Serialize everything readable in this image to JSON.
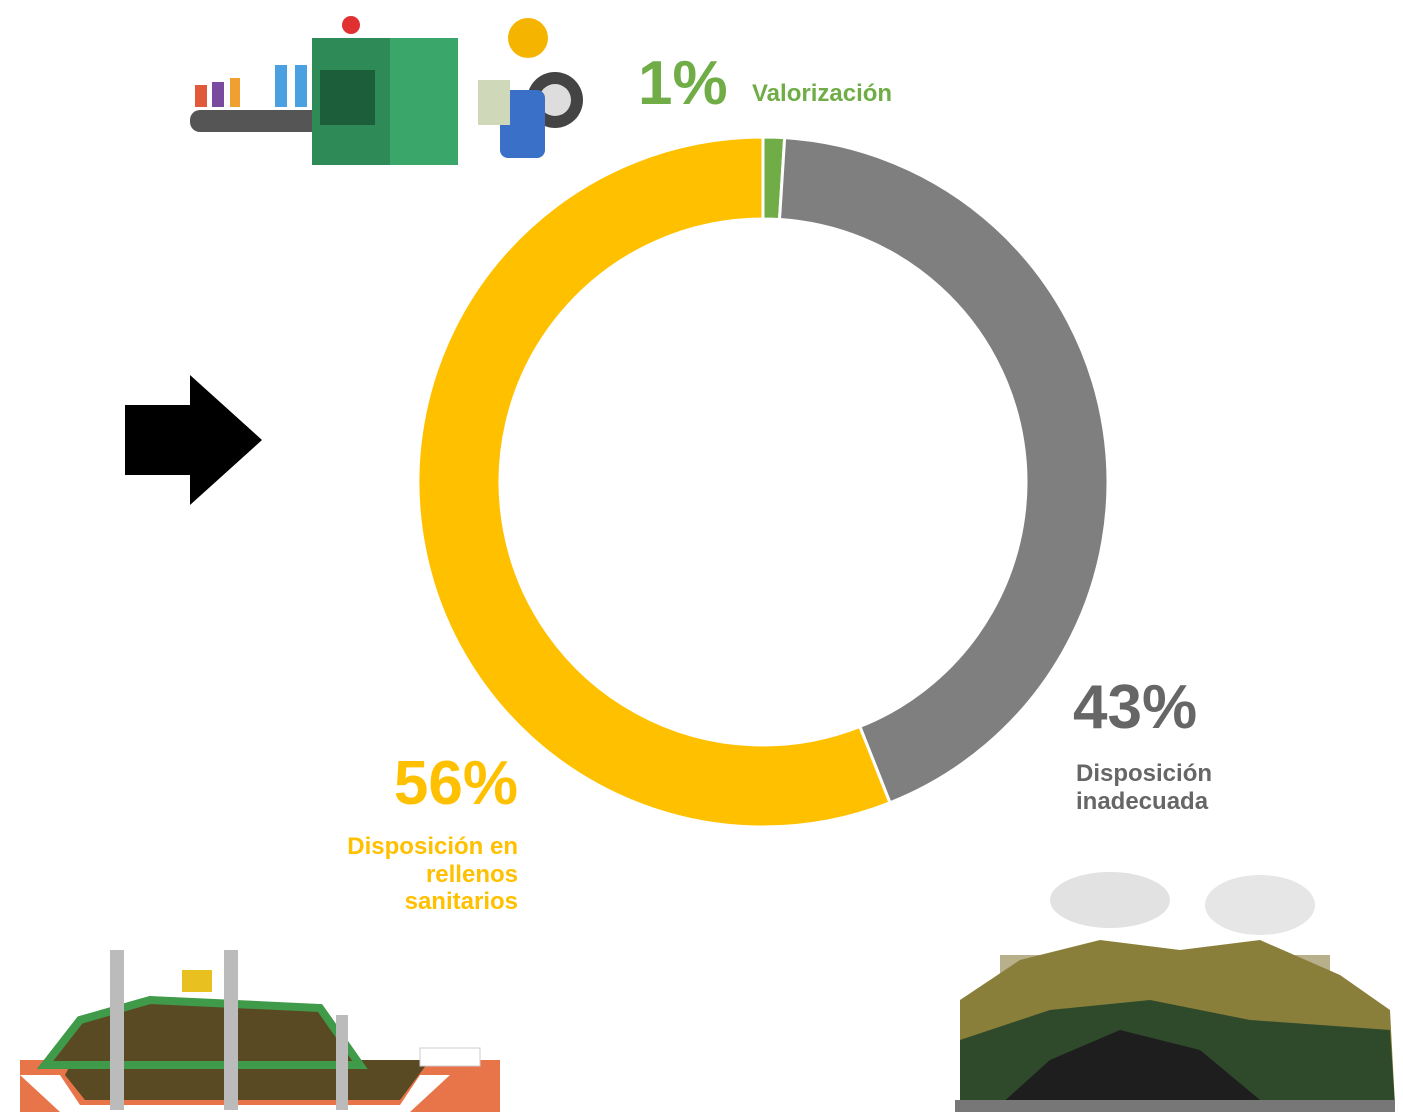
{
  "chart_data": {
    "type": "pie",
    "donut": true,
    "categories": [
      "Valorización",
      "Disposición inadecuada",
      "Disposición en rellenos sanitarios"
    ],
    "values": [
      1,
      43,
      56
    ],
    "value_labels": [
      "1%",
      "43%",
      "56%"
    ],
    "colors": [
      "#70ad47",
      "#7f7f7f",
      "#ffc000"
    ]
  }
}
